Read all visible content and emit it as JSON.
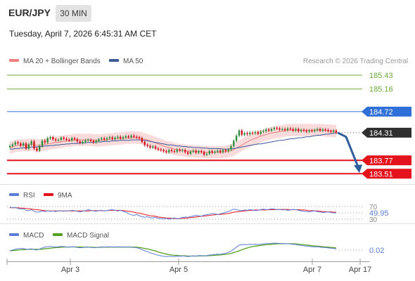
{
  "header": {
    "symbol": "EUR/JPY",
    "interval": "30 MIN",
    "timestamp": "Tuesday, April 7, 2026 6:45:31 AM CET"
  },
  "colors": {
    "candle_up": "#2e8b3a",
    "candle_down": "#d0141e",
    "bollinger_band": "#f7cfcf",
    "ma20": "#f08080",
    "ma50": "#3a5a98",
    "resistance": "#6cab3b",
    "pivot": "#2f6fd8",
    "support": "#e4121b",
    "last_price": "#2f2f2f",
    "forecast_arrow": "#2f5e9e",
    "rsi": "#5a7ed8",
    "rsi_ma": "#e4121b",
    "macd": "#5a7ed8",
    "macd_signal": "#54a020"
  },
  "chart_data": {
    "type": "candlestick",
    "watermark": "Research © 2026 Trading Central",
    "x_axis": {
      "tick_labels": [
        "Apr 3",
        "Apr 5",
        "Apr 7",
        "Apr 17"
      ]
    },
    "price_panel": {
      "legend": [
        "MA 20 + Bollinger Bands",
        "MA 50"
      ],
      "ylim": [
        183.4,
        185.55
      ],
      "levels": [
        {
          "value": 185.43,
          "label": "185.43",
          "kind": "resistance"
        },
        {
          "value": 185.16,
          "label": "185.16",
          "kind": "resistance"
        },
        {
          "value": 184.72,
          "label": "184.72",
          "kind": "pivot"
        },
        {
          "value": 184.31,
          "label": "184.31",
          "kind": "last"
        },
        {
          "value": 183.77,
          "label": "183.77",
          "kind": "support"
        },
        {
          "value": 183.51,
          "label": "183.51",
          "kind": "support"
        }
      ],
      "close": [
        184.05,
        184.08,
        184.12,
        184.1,
        184.06,
        184.1,
        184.0,
        184.08,
        184.14,
        184.0,
        183.96,
        184.05,
        184.15,
        184.12,
        184.2,
        184.22,
        184.18,
        184.16,
        184.17,
        184.21,
        184.19,
        184.17,
        184.16,
        184.2,
        184.18,
        184.14,
        184.11,
        184.13,
        184.16,
        184.17,
        184.15,
        184.12,
        184.15,
        184.18,
        184.2,
        184.18,
        184.2,
        184.22,
        184.19,
        184.21,
        184.23,
        184.2,
        184.22,
        184.24,
        184.22,
        184.25,
        184.23,
        184.22,
        184.2,
        184.13,
        184.07,
        184.05,
        184.02,
        184.04,
        184.0,
        183.98,
        183.97,
        183.95,
        183.93,
        183.97,
        183.95,
        183.94,
        183.98,
        183.96,
        183.97,
        183.93,
        183.9,
        183.94,
        183.96,
        183.92,
        183.95,
        183.93,
        183.88,
        183.9,
        183.95,
        183.92,
        183.94,
        183.96,
        183.93,
        183.97,
        183.95,
        183.98,
        184.05,
        184.15,
        184.25,
        184.35,
        184.27,
        184.3,
        184.28,
        184.31,
        184.3,
        184.32,
        184.29,
        184.33,
        184.34,
        184.37,
        184.35,
        184.38,
        184.4,
        184.39,
        184.37,
        184.38,
        184.36,
        184.39,
        184.38,
        184.35,
        184.38,
        184.34,
        184.36,
        184.35,
        184.33,
        184.35,
        184.34,
        184.36,
        184.38,
        184.35,
        184.37,
        184.36,
        184.34,
        184.33,
        184.35,
        184.31
      ],
      "ma20": [
        184.02,
        184.03,
        184.05,
        184.06,
        184.06,
        184.07,
        184.07,
        184.07,
        184.08,
        184.07,
        184.06,
        184.06,
        184.07,
        184.08,
        184.09,
        184.1,
        184.11,
        184.12,
        184.12,
        184.13,
        184.14,
        184.15,
        184.15,
        184.16,
        184.17,
        184.17,
        184.17,
        184.17,
        184.17,
        184.17,
        184.17,
        184.16,
        184.16,
        184.16,
        184.16,
        184.17,
        184.17,
        184.18,
        184.18,
        184.19,
        184.19,
        184.2,
        184.2,
        184.21,
        184.21,
        184.21,
        184.22,
        184.21,
        184.21,
        184.2,
        184.18,
        184.17,
        184.15,
        184.13,
        184.11,
        184.09,
        184.07,
        184.05,
        184.03,
        184.02,
        184.01,
        183.99,
        183.98,
        183.97,
        183.97,
        183.96,
        183.95,
        183.95,
        183.95,
        183.94,
        183.94,
        183.94,
        183.93,
        183.93,
        183.93,
        183.93,
        183.93,
        183.93,
        183.93,
        183.93,
        183.94,
        183.95,
        183.96,
        183.98,
        184.01,
        184.04,
        184.07,
        184.1,
        184.13,
        184.16,
        184.18,
        184.2,
        184.22,
        184.24,
        184.26,
        184.27,
        184.29,
        184.3,
        184.31,
        184.32,
        184.33,
        184.34,
        184.35,
        184.36,
        184.36,
        184.36,
        184.36,
        184.36,
        184.36,
        184.36,
        184.36,
        184.36,
        184.36,
        184.36,
        184.36,
        184.36,
        184.36,
        184.35,
        184.35,
        184.35,
        184.34,
        184.34
      ],
      "ma50": [
        183.99,
        183.99,
        184.0,
        184.0,
        184.01,
        184.01,
        184.02,
        184.02,
        184.03,
        184.03,
        184.03,
        184.04,
        184.04,
        184.05,
        184.05,
        184.06,
        184.06,
        184.07,
        184.07,
        184.08,
        184.08,
        184.09,
        184.09,
        184.1,
        184.1,
        184.1,
        184.11,
        184.11,
        184.11,
        184.12,
        184.12,
        184.12,
        184.13,
        184.13,
        184.13,
        184.14,
        184.14,
        184.14,
        184.15,
        184.15,
        184.15,
        184.16,
        184.16,
        184.16,
        184.16,
        184.17,
        184.17,
        184.17,
        184.17,
        184.17,
        184.16,
        184.15,
        184.14,
        184.13,
        184.12,
        184.11,
        184.1,
        184.09,
        184.08,
        184.07,
        184.07,
        184.06,
        184.05,
        184.05,
        184.04,
        184.04,
        184.03,
        184.03,
        184.02,
        184.02,
        184.02,
        184.01,
        184.01,
        184.01,
        184.0,
        184.0,
        184.0,
        184.0,
        184.0,
        183.99,
        183.99,
        183.99,
        184.0,
        184.0,
        184.01,
        184.02,
        184.03,
        184.04,
        184.05,
        184.06,
        184.07,
        184.08,
        184.09,
        184.09,
        184.1,
        184.11,
        184.12,
        184.13,
        184.14,
        184.15,
        184.16,
        184.16,
        184.17,
        184.18,
        184.19,
        184.19,
        184.2,
        184.21,
        184.21,
        184.22,
        184.23,
        184.23,
        184.24,
        184.25,
        184.26,
        184.26,
        184.27,
        184.28,
        184.28,
        184.29,
        184.3,
        184.31
      ],
      "bollinger_halfwidth": 0.12,
      "forecast": {
        "from": 184.31,
        "to": 183.51
      }
    },
    "rsi_panel": {
      "legend": [
        "RSI",
        "9MA"
      ],
      "ylim": [
        20,
        80
      ],
      "levels": [
        {
          "value": 70,
          "label": "70"
        },
        {
          "value": 30,
          "label": "30"
        }
      ],
      "last_value": 49.95,
      "last_label": "49.95",
      "rsi": [
        68,
        66,
        67,
        64,
        62,
        63,
        58,
        57,
        60,
        55,
        52,
        53,
        56,
        54,
        57,
        55,
        56,
        54,
        57,
        56,
        55,
        57,
        56,
        58,
        57,
        55,
        53,
        55,
        57,
        60,
        58,
        56,
        55,
        57,
        58,
        56,
        57,
        59,
        60,
        58,
        56,
        58,
        55,
        52,
        48,
        44,
        42,
        45,
        41,
        38,
        36,
        38,
        35,
        34,
        36,
        33,
        32,
        31,
        33,
        30,
        32,
        34,
        31,
        33,
        35,
        37,
        36,
        38,
        40,
        42,
        41,
        39,
        43,
        44,
        46,
        48,
        47,
        45,
        47,
        49,
        52,
        54,
        58,
        62,
        60,
        58,
        57,
        59,
        58,
        60,
        59,
        57,
        58,
        60,
        62,
        60,
        61,
        63,
        62,
        60,
        61,
        59,
        60,
        58,
        59,
        61,
        60,
        58,
        56,
        55,
        54,
        53,
        55,
        56,
        54,
        53,
        51,
        52,
        53,
        51,
        50,
        49.95
      ],
      "ma9": [
        66,
        66,
        66,
        66,
        65,
        65,
        64,
        63,
        62,
        61,
        60,
        59,
        58,
        57,
        56,
        56,
        56,
        56,
        56,
        56,
        56,
        56,
        56,
        56,
        56,
        56,
        56,
        56,
        56,
        56,
        57,
        57,
        57,
        57,
        57,
        57,
        57,
        58,
        58,
        58,
        58,
        58,
        57,
        56,
        55,
        54,
        52,
        50,
        49,
        47,
        45,
        43,
        41,
        40,
        39,
        37,
        36,
        35,
        34,
        33,
        33,
        32,
        32,
        32,
        33,
        33,
        34,
        35,
        36,
        37,
        38,
        39,
        40,
        41,
        42,
        43,
        44,
        45,
        45,
        46,
        47,
        48,
        50,
        52,
        53,
        54,
        55,
        56,
        57,
        58,
        58,
        59,
        59,
        59,
        59,
        59,
        60,
        60,
        60,
        61,
        61,
        61,
        61,
        61,
        60,
        60,
        60,
        60,
        59,
        59,
        58,
        57,
        57,
        56,
        56,
        55,
        54,
        54,
        53,
        53,
        52,
        52
      ],
      "ma9_last": 52
    },
    "macd_panel": {
      "legend": [
        "MACD",
        "MACD Signal"
      ],
      "ylim": [
        -0.12,
        0.18
      ],
      "last_value": 0.02,
      "last_label": "0.02",
      "macd": [
        0.0,
        0.01,
        0.02,
        0.025,
        0.03,
        0.028,
        0.02,
        0.018,
        0.025,
        0.015,
        0.01,
        0.02,
        0.035,
        0.045,
        0.05,
        0.055,
        0.05,
        0.045,
        0.05,
        0.055,
        0.052,
        0.048,
        0.045,
        0.05,
        0.048,
        0.042,
        0.038,
        0.04,
        0.044,
        0.046,
        0.042,
        0.038,
        0.04,
        0.045,
        0.048,
        0.046,
        0.048,
        0.05,
        0.046,
        0.048,
        0.05,
        0.045,
        0.046,
        0.048,
        0.045,
        0.046,
        0.042,
        0.038,
        0.03,
        0.015,
        0.0,
        -0.01,
        -0.025,
        -0.035,
        -0.045,
        -0.055,
        -0.062,
        -0.068,
        -0.072,
        -0.068,
        -0.07,
        -0.072,
        -0.066,
        -0.068,
        -0.064,
        -0.068,
        -0.072,
        -0.066,
        -0.062,
        -0.066,
        -0.06,
        -0.06,
        -0.064,
        -0.06,
        -0.052,
        -0.05,
        -0.046,
        -0.042,
        -0.044,
        -0.036,
        -0.03,
        -0.02,
        -0.005,
        0.02,
        0.045,
        0.07,
        0.075,
        0.078,
        0.076,
        0.08,
        0.079,
        0.082,
        0.078,
        0.082,
        0.085,
        0.09,
        0.088,
        0.092,
        0.095,
        0.093,
        0.09,
        0.09,
        0.086,
        0.088,
        0.085,
        0.08,
        0.078,
        0.07,
        0.066,
        0.062,
        0.056,
        0.055,
        0.05,
        0.048,
        0.05,
        0.045,
        0.042,
        0.04,
        0.036,
        0.032,
        0.03,
        0.024
      ],
      "signal": [
        0.0,
        0.003,
        0.006,
        0.009,
        0.012,
        0.015,
        0.016,
        0.017,
        0.018,
        0.018,
        0.018,
        0.018,
        0.021,
        0.024,
        0.028,
        0.032,
        0.036,
        0.039,
        0.041,
        0.044,
        0.046,
        0.047,
        0.047,
        0.048,
        0.048,
        0.047,
        0.046,
        0.045,
        0.045,
        0.045,
        0.044,
        0.043,
        0.043,
        0.043,
        0.044,
        0.044,
        0.045,
        0.046,
        0.046,
        0.046,
        0.047,
        0.046,
        0.046,
        0.046,
        0.046,
        0.046,
        0.045,
        0.044,
        0.041,
        0.036,
        0.03,
        0.023,
        0.015,
        0.006,
        -0.003,
        -0.014,
        -0.024,
        -0.033,
        -0.041,
        -0.047,
        -0.052,
        -0.056,
        -0.058,
        -0.061,
        -0.062,
        -0.063,
        -0.065,
        -0.065,
        -0.065,
        -0.065,
        -0.064,
        -0.063,
        -0.063,
        -0.062,
        -0.06,
        -0.058,
        -0.056,
        -0.053,
        -0.051,
        -0.048,
        -0.044,
        -0.039,
        -0.032,
        -0.023,
        -0.012,
        0.0,
        0.012,
        0.025,
        0.035,
        0.045,
        0.052,
        0.058,
        0.063,
        0.067,
        0.071,
        0.075,
        0.078,
        0.081,
        0.084,
        0.086,
        0.087,
        0.088,
        0.088,
        0.088,
        0.088,
        0.087,
        0.085,
        0.082,
        0.079,
        0.075,
        0.071,
        0.067,
        0.063,
        0.059,
        0.057,
        0.054,
        0.051,
        0.048,
        0.045,
        0.042,
        0.039,
        0.035
      ]
    }
  }
}
